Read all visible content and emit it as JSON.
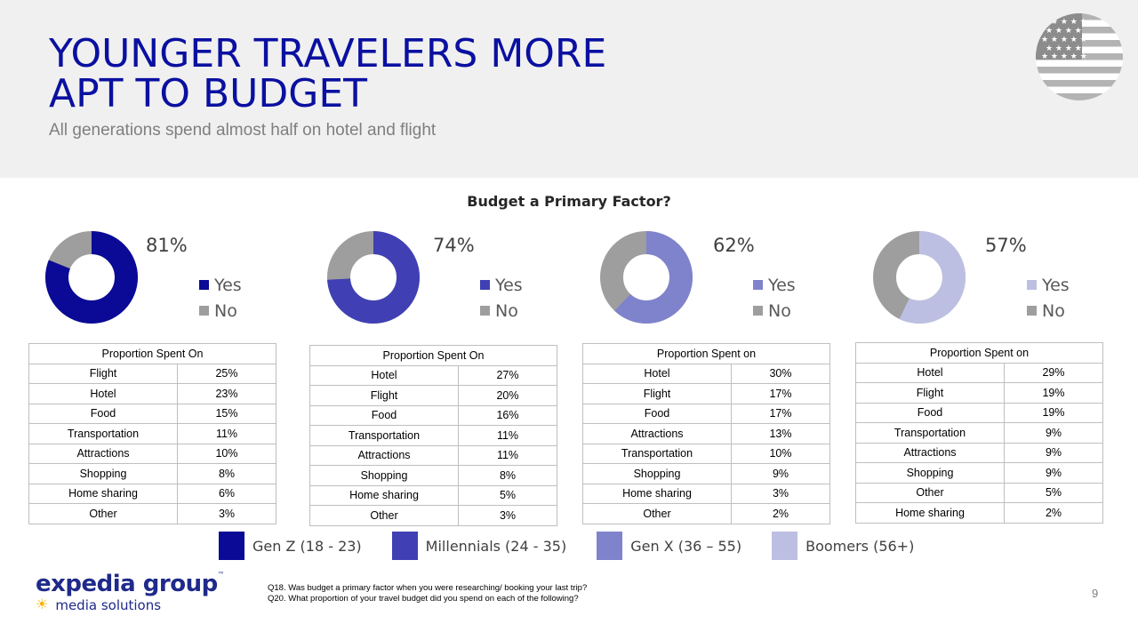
{
  "slide": {
    "title_line1": "YOUNGER TRAVELERS MORE",
    "title_line2": "APT TO BUDGET",
    "subtitle": "All generations spend almost half on hotel and flight",
    "flag_icon": "us-flag-icon",
    "page_number": "9",
    "footnote_1": "Q18. Was budget a primary factor when you were researching/ booking your last trip?",
    "footnote_2": "Q20. What proportion of your travel budget did you spend on each of the following?",
    "logo_main": "expedia group",
    "logo_tm": "™",
    "logo_sub": "media solutions",
    "logo_sun": "☀",
    "colors": {
      "gen_z": "#0a0a96",
      "millennials": "#4040b4",
      "gen_x": "#7f83cc",
      "boomers": "#bdbfe2",
      "no": "#9e9e9e",
      "title": "#0a10a0"
    }
  },
  "chart_data": {
    "type": "pie",
    "title": "Budget a Primary Factor?",
    "legend_labels": [
      "Yes",
      "No"
    ],
    "series": [
      {
        "name": "Gen Z (18 - 23)",
        "yes": 81,
        "no": 19,
        "label": "81%",
        "color": "#0a0a96"
      },
      {
        "name": "Millennials (24 - 35)",
        "yes": 74,
        "no": 26,
        "label": "74%",
        "color": "#4040b4"
      },
      {
        "name": "Gen X (36 – 55)",
        "yes": 62,
        "no": 38,
        "label": "62%",
        "color": "#7f83cc"
      },
      {
        "name": "Boomers (56+)",
        "yes": 57,
        "no": 43,
        "label": "57%",
        "color": "#bdbfe2"
      }
    ]
  },
  "tables": [
    {
      "header": "Proportion  Spent On",
      "rows": [
        [
          "Flight",
          "25%"
        ],
        [
          "Hotel",
          "23%"
        ],
        [
          "Food",
          "15%"
        ],
        [
          "Transportation",
          "11%"
        ],
        [
          "Attractions",
          "10%"
        ],
        [
          "Shopping",
          "8%"
        ],
        [
          "Home sharing",
          "6%"
        ],
        [
          "Other",
          "3%"
        ]
      ]
    },
    {
      "header": "Proportion  Spent On",
      "rows": [
        [
          "Hotel",
          "27%"
        ],
        [
          "Flight",
          "20%"
        ],
        [
          "Food",
          "16%"
        ],
        [
          "Transportation",
          "11%"
        ],
        [
          "Attractions",
          "11%"
        ],
        [
          "Shopping",
          "8%"
        ],
        [
          "Home sharing",
          "5%"
        ],
        [
          "Other",
          "3%"
        ]
      ]
    },
    {
      "header": "Proportion  Spent on",
      "rows": [
        [
          "Hotel",
          "30%"
        ],
        [
          "Flight",
          "17%"
        ],
        [
          "Food",
          "17%"
        ],
        [
          "Attractions",
          "13%"
        ],
        [
          "Transportation",
          "10%"
        ],
        [
          "Shopping",
          "9%"
        ],
        [
          "Home sharing",
          "3%"
        ],
        [
          "Other",
          "2%"
        ]
      ]
    },
    {
      "header": "Proportion  Spent on",
      "rows": [
        [
          "Hotel",
          "29%"
        ],
        [
          "Flight",
          "19%"
        ],
        [
          "Food",
          "19%"
        ],
        [
          "Transportation",
          "9%"
        ],
        [
          "Attractions",
          "9%"
        ],
        [
          "Shopping",
          "9%"
        ],
        [
          "Other",
          "5%"
        ],
        [
          "Home sharing",
          "2%"
        ]
      ]
    }
  ]
}
